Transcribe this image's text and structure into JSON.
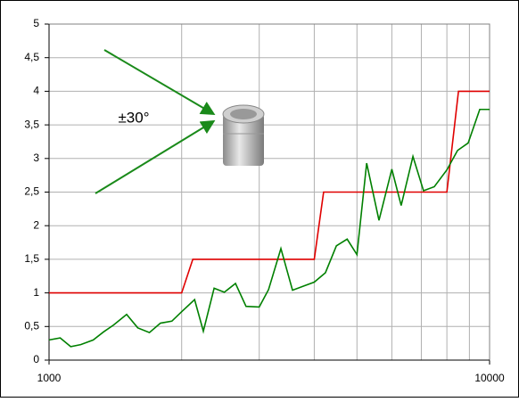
{
  "chart_data": {
    "type": "line",
    "xscale": "log",
    "xlim": [
      1000,
      10000
    ],
    "xticks": [
      1000,
      10000
    ],
    "xgrid": [
      2000,
      3000,
      4000,
      5000,
      6000,
      7000,
      8000,
      9000
    ],
    "ylim": [
      0,
      5
    ],
    "yticks": [
      0,
      {
        "value": 0.5,
        "label": "0,5"
      },
      1,
      {
        "value": 1.5,
        "label": "1,5"
      },
      2,
      {
        "value": 2.5,
        "label": "2,5"
      },
      3,
      {
        "value": 3.5,
        "label": "3,5"
      },
      4,
      {
        "value": 4.5,
        "label": "4,5"
      },
      5
    ],
    "grid": true,
    "annotations": [
      "±30°"
    ],
    "series": [
      {
        "color": "#e00000",
        "x": [
          1000,
          2000,
          2120,
          4000,
          4200,
          8000,
          8500,
          10000
        ],
        "values": [
          1,
          1,
          1.5,
          1.5,
          2.5,
          2.5,
          4,
          4
        ]
      },
      {
        "color": "#008000",
        "x": [
          1000,
          1060,
          1120,
          1180,
          1260,
          1330,
          1400,
          1500,
          1590,
          1690,
          1790,
          1900,
          2000,
          2140,
          2240,
          2370,
          2500,
          2650,
          2800,
          3000,
          3150,
          3360,
          3570,
          3780,
          4000,
          4240,
          4490,
          4750,
          5000,
          5260,
          5610,
          6000,
          6300,
          6700,
          7080,
          7490,
          8000,
          8460,
          8940,
          9500,
          10000
        ],
        "values": [
          0.3,
          0.33,
          0.2,
          0.23,
          0.3,
          0.42,
          0.52,
          0.68,
          0.48,
          0.41,
          0.55,
          0.58,
          0.72,
          0.9,
          0.43,
          1.07,
          1.01,
          1.14,
          0.8,
          0.79,
          1.05,
          1.66,
          1.04,
          1.1,
          1.16,
          1.3,
          1.7,
          1.8,
          1.57,
          2.93,
          2.08,
          2.84,
          2.3,
          3.03,
          2.52,
          2.58,
          2.83,
          3.12,
          3.23,
          3.73,
          3.73
        ]
      }
    ]
  }
}
